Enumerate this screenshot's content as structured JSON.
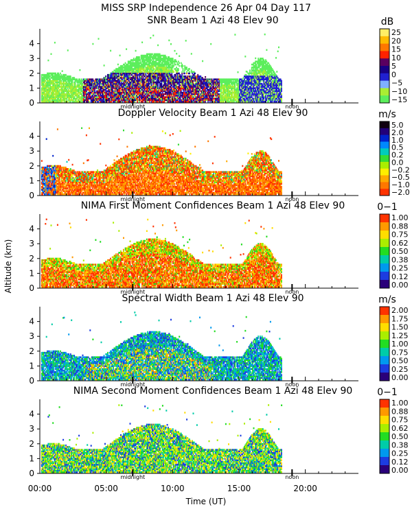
{
  "figure": {
    "title": "MISS SRP Independence  26 Apr 04 Day 117",
    "ylabel": "Altitude (km)",
    "xlabel": "Time (UT)",
    "midnight_label": "midnight",
    "noon_label": "noon",
    "x_ticks": [
      "00:00",
      "05:00",
      "10:00",
      "15:00",
      "20:00"
    ],
    "x_tick_values": [
      0,
      5,
      10,
      15,
      20
    ]
  },
  "colors": {
    "snr": [
      "#5cee5c",
      "#aaee33",
      "#7fb0ff",
      "#2020d0",
      "#180085",
      "#5a0060",
      "#ff2200",
      "#ff7700",
      "#ffbb00",
      "#ffee66"
    ],
    "doppler": [
      "#ff3300",
      "#ff7700",
      "#ffaa00",
      "#ffee00",
      "#aaee00",
      "#33dd33",
      "#00ccbb",
      "#0088ff",
      "#0022cc",
      "#22007a",
      "#100010"
    ],
    "moment": [
      "#2a007a",
      "#1c3ce0",
      "#0099ee",
      "#00cca8",
      "#22dd22",
      "#aaee00",
      "#ffdd00",
      "#ff9900",
      "#ff3300"
    ]
  },
  "chart_data": [
    {
      "type": "heatmap",
      "id": "snr",
      "title": "SNR Beam 1 Azi  48 Elev 90",
      "unit": "dB",
      "colorbar_labels": [
        "25",
        "20",
        "15",
        "10",
        "5",
        "0",
        "−5",
        "−10",
        "−15"
      ],
      "xlim": [
        0,
        24
      ],
      "ylim": [
        0,
        5
      ],
      "y_ticks": [
        0,
        1,
        2,
        3,
        4
      ]
    },
    {
      "type": "heatmap",
      "id": "doppler",
      "title": "Doppler Velocity Beam 1 Azi  48 Elev 90",
      "unit": "m/s",
      "colorbar_labels": [
        "5.0",
        "2.0",
        "1.0",
        "0.5",
        "0.2",
        "0.0",
        "−0.2",
        "−0.5",
        "−1.0",
        "−2.0"
      ],
      "xlim": [
        0,
        24
      ],
      "ylim": [
        0,
        5
      ],
      "y_ticks": [
        0,
        1,
        2,
        3,
        4
      ]
    },
    {
      "type": "heatmap",
      "id": "first",
      "title": "NIMA First Moment Confidences Beam 1 Azi  48 Elev 90",
      "unit": "0−1",
      "colorbar_labels": [
        "1.00",
        "0.88",
        "0.75",
        "0.62",
        "0.50",
        "0.38",
        "0.25",
        "0.12",
        "0.00"
      ],
      "xlim": [
        0,
        24
      ],
      "ylim": [
        0,
        5
      ],
      "y_ticks": [
        0,
        1,
        2,
        3,
        4
      ]
    },
    {
      "type": "heatmap",
      "id": "width",
      "title": "Spectral Width Beam 1 Azi  48 Elev 90",
      "unit": "m/s",
      "colorbar_labels": [
        "2.00",
        "1.75",
        "1.50",
        "1.25",
        "1.00",
        "0.75",
        "0.50",
        "0.25",
        "0.00"
      ],
      "xlim": [
        0,
        24
      ],
      "ylim": [
        0,
        5
      ],
      "y_ticks": [
        0,
        1,
        2,
        3,
        4
      ]
    },
    {
      "type": "heatmap",
      "id": "second",
      "title": "NIMA Second Moment Confidences Beam 1 Azi  48 Elev 90",
      "unit": "0−1",
      "colorbar_labels": [
        "1.00",
        "0.88",
        "0.75",
        "0.62",
        "0.50",
        "0.38",
        "0.25",
        "0.12",
        "0.00"
      ],
      "xlim": [
        0,
        24
      ],
      "ylim": [
        0,
        5
      ],
      "y_ticks": [
        0,
        1,
        2,
        3,
        4
      ]
    }
  ]
}
